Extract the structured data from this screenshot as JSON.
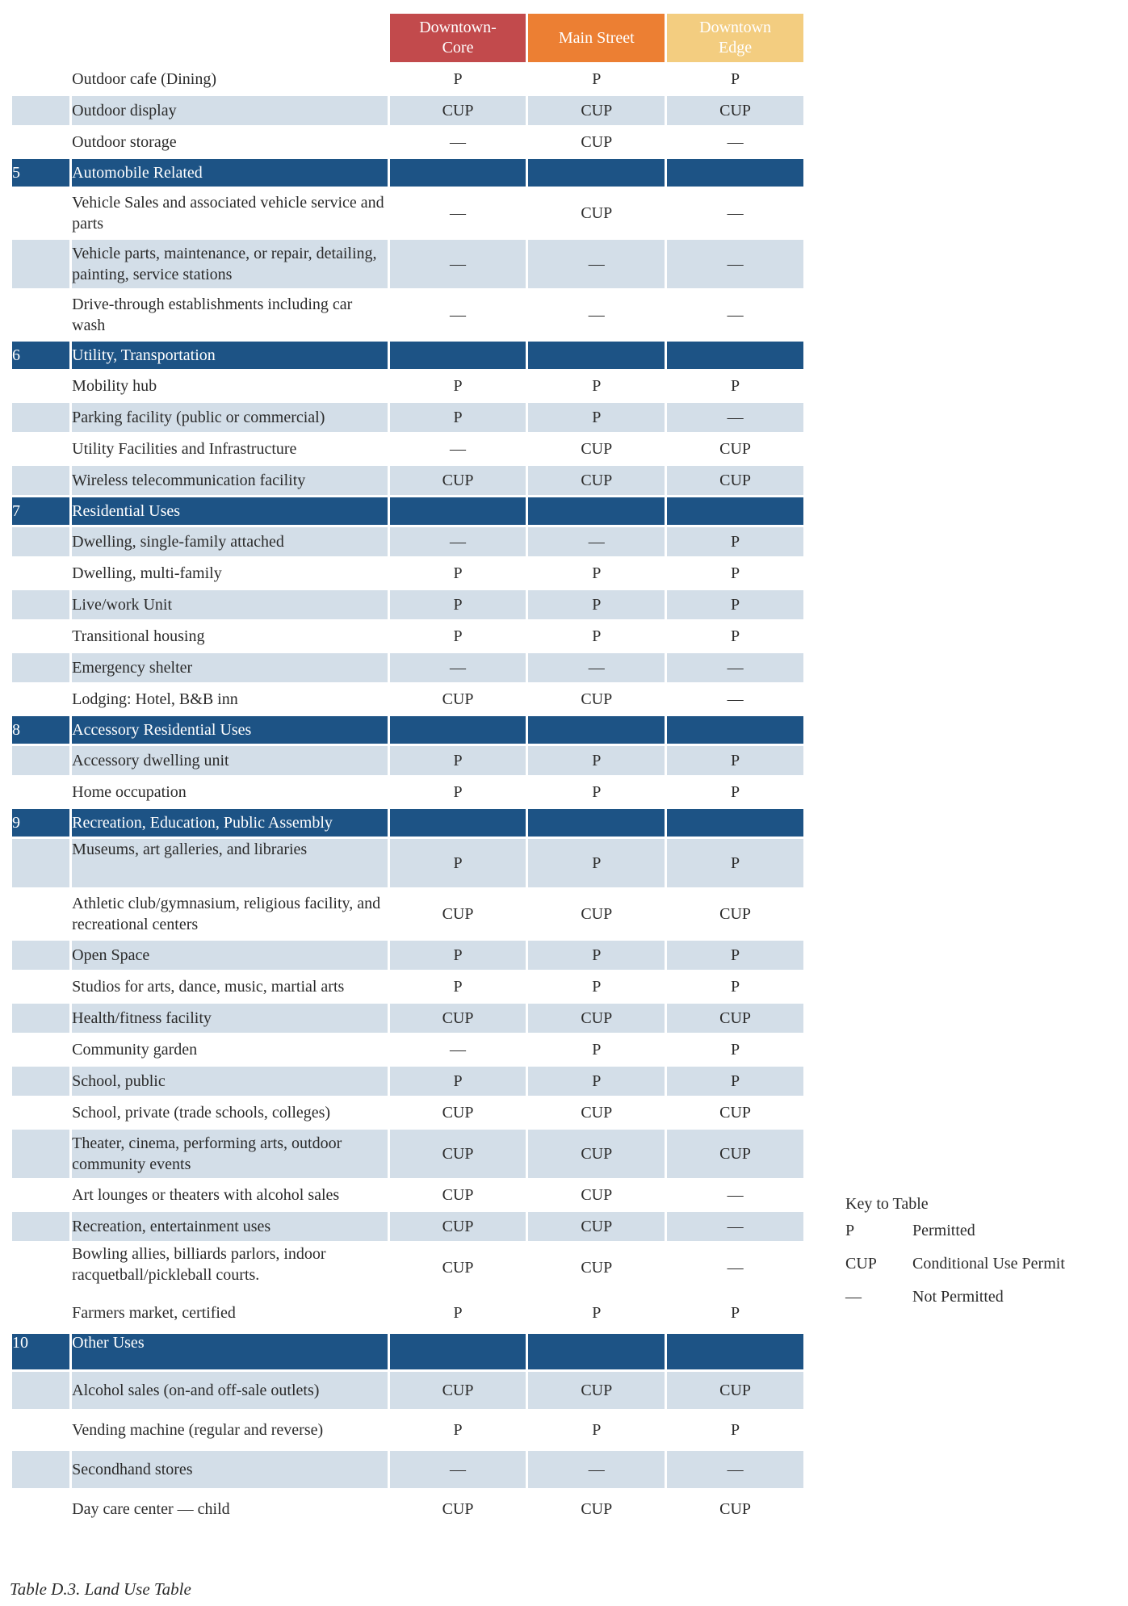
{
  "columns": [
    "Downtown-\nCore",
    "Main Street",
    "Downtown\nEdge"
  ],
  "rows": [
    {
      "kind": "item",
      "use": "Outdoor cafe (Dining)",
      "values": [
        "P",
        "P",
        "P"
      ]
    },
    {
      "kind": "item",
      "use": "Outdoor display",
      "values": [
        "CUP",
        "CUP",
        "CUP"
      ]
    },
    {
      "kind": "item",
      "use": "Outdoor storage",
      "values": [
        "—",
        "CUP",
        "—"
      ]
    },
    {
      "kind": "section",
      "num": "5",
      "title": "Automobile Related"
    },
    {
      "kind": "item",
      "use": "Vehicle Sales and associated vehicle service and parts",
      "values": [
        "—",
        "CUP",
        "—"
      ]
    },
    {
      "kind": "item",
      "use": "Vehicle parts, maintenance, or repair, detailing, painting, service stations",
      "values": [
        "—",
        "—",
        "—"
      ]
    },
    {
      "kind": "item",
      "use": "Drive-through establishments including car wash",
      "values": [
        "—",
        "—",
        "—"
      ]
    },
    {
      "kind": "section",
      "num": "6",
      "title": "Utility, Transportation"
    },
    {
      "kind": "item",
      "use": "Mobility hub",
      "values": [
        "P",
        "P",
        "P"
      ]
    },
    {
      "kind": "item",
      "use": "Parking facility (public or commercial)",
      "values": [
        "P",
        "P",
        "—"
      ]
    },
    {
      "kind": "item",
      "use": "Utility Facilities and Infrastructure",
      "values": [
        "—",
        "CUP",
        "CUP"
      ]
    },
    {
      "kind": "item",
      "use": "Wireless telecommunication facility",
      "values": [
        "CUP",
        "CUP",
        "CUP"
      ]
    },
    {
      "kind": "section",
      "num": "7",
      "title": "Residential Uses"
    },
    {
      "kind": "item",
      "use": "Dwelling, single-family attached",
      "values": [
        "—",
        "—",
        "P"
      ]
    },
    {
      "kind": "item",
      "use": "Dwelling, multi-family",
      "values": [
        "P",
        "P",
        "P"
      ]
    },
    {
      "kind": "item",
      "use": "Live/work Unit",
      "values": [
        "P",
        "P",
        "P"
      ]
    },
    {
      "kind": "item",
      "use": "Transitional housing",
      "values": [
        "P",
        "P",
        "P"
      ]
    },
    {
      "kind": "item",
      "use": "Emergency shelter",
      "values": [
        "—",
        "—",
        "—"
      ]
    },
    {
      "kind": "item",
      "use": "Lodging: Hotel, B&B inn",
      "values": [
        "CUP",
        "CUP",
        "—"
      ]
    },
    {
      "kind": "section",
      "num": "8",
      "title": "Accessory Residential Uses"
    },
    {
      "kind": "item",
      "use": "Accessory dwelling unit",
      "values": [
        "P",
        "P",
        "P"
      ]
    },
    {
      "kind": "item",
      "use": "Home occupation",
      "values": [
        "P",
        "P",
        "P"
      ]
    },
    {
      "kind": "section",
      "num": "9",
      "title": "Recreation, Education, Public Assembly"
    },
    {
      "kind": "item",
      "use": "Museums, art galleries, and libraries",
      "values": [
        "P",
        "P",
        "P"
      ]
    },
    {
      "kind": "item",
      "use": "Athletic club/gymnasium, religious facility, and recreational centers",
      "values": [
        "CUP",
        "CUP",
        "CUP"
      ]
    },
    {
      "kind": "item",
      "use": "Open Space",
      "values": [
        "P",
        "P",
        "P"
      ]
    },
    {
      "kind": "item",
      "use": "Studios for arts, dance, music, martial arts",
      "values": [
        "P",
        "P",
        "P"
      ]
    },
    {
      "kind": "item",
      "use": "Health/fitness facility",
      "values": [
        "CUP",
        "CUP",
        "CUP"
      ]
    },
    {
      "kind": "item",
      "use": "Community garden",
      "values": [
        "—",
        "P",
        "P"
      ]
    },
    {
      "kind": "item",
      "use": "School, public",
      "values": [
        "P",
        "P",
        "P"
      ]
    },
    {
      "kind": "item",
      "use": "School, private (trade schools, colleges)",
      "values": [
        "CUP",
        "CUP",
        "CUP"
      ]
    },
    {
      "kind": "item",
      "use": "Theater, cinema, performing arts, outdoor community events",
      "values": [
        "CUP",
        "CUP",
        "CUP"
      ]
    },
    {
      "kind": "item",
      "use": "Art lounges or theaters with alcohol sales",
      "values": [
        "CUP",
        "CUP",
        "—"
      ]
    },
    {
      "kind": "item",
      "use": "Recreation, entertainment uses",
      "values": [
        "CUP",
        "CUP",
        "—"
      ]
    },
    {
      "kind": "item",
      "use": "Bowling allies, billiards parlors, indoor racquetball/pickleball courts.",
      "values": [
        "CUP",
        "CUP",
        "—"
      ]
    },
    {
      "kind": "item",
      "use": "Farmers market, certified",
      "values": [
        "P",
        "P",
        "P"
      ]
    },
    {
      "kind": "section",
      "num": "10",
      "title": "Other Uses"
    },
    {
      "kind": "item",
      "use": "Alcohol sales (on-and off-sale outlets)",
      "values": [
        "CUP",
        "CUP",
        "CUP"
      ]
    },
    {
      "kind": "item",
      "use": "Vending machine (regular and reverse)",
      "values": [
        "P",
        "P",
        "P"
      ]
    },
    {
      "kind": "item",
      "use": "Secondhand stores",
      "values": [
        "—",
        "—",
        "—"
      ]
    },
    {
      "kind": "item",
      "use": "Day care center — child",
      "values": [
        "CUP",
        "CUP",
        "CUP"
      ]
    }
  ],
  "key": {
    "title": "Key to Table",
    "entries": [
      {
        "code": "P",
        "meaning": "Permitted"
      },
      {
        "code": "CUP",
        "meaning": "Conditional Use Permit"
      },
      {
        "code": "—",
        "meaning": "Not Permitted"
      }
    ]
  },
  "caption": "Table D.3. Land Use Table"
}
